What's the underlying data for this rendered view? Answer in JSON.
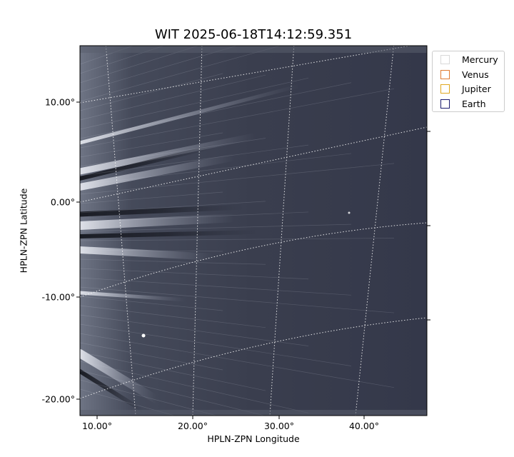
{
  "title": "WIT 2025-06-18T14:12:59.351",
  "axes": {
    "xlabel": "HPLN-ZPN Longitude",
    "ylabel": "HPLN-ZPN Latitude",
    "xticks": [
      "10.00°",
      "20.00°",
      "30.00°",
      "40.00°"
    ],
    "yticks": [
      "10.00°",
      "0.00°",
      "-10.00°",
      "-20.00°"
    ]
  },
  "legend": {
    "items": [
      {
        "label": "Mercury",
        "color": "#d9d9d9"
      },
      {
        "label": "Venus",
        "color": "#e07a30"
      },
      {
        "label": "Jupiter",
        "color": "#e0a820"
      },
      {
        "label": "Earth",
        "color": "#1a1a6e"
      }
    ]
  },
  "colors": {
    "image_dark": "#2e3242",
    "image_bright": "#e4e6ee",
    "grid": "#ffffff"
  }
}
